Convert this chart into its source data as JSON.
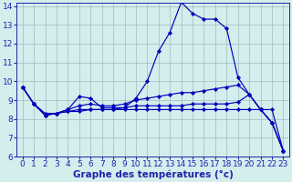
{
  "title": "Graphe des températures (°c)",
  "hours": [
    0,
    1,
    2,
    3,
    4,
    5,
    6,
    7,
    8,
    9,
    10,
    11,
    12,
    13,
    14,
    15,
    16,
    17,
    18,
    19,
    20,
    21,
    22,
    23
  ],
  "temp_main": [
    9.7,
    8.8,
    8.2,
    8.3,
    8.5,
    9.2,
    9.1,
    8.6,
    8.6,
    8.6,
    9.1,
    10.0,
    11.6,
    12.6,
    14.2,
    13.6,
    13.3,
    13.3,
    12.8,
    10.2,
    9.3,
    8.5,
    7.8,
    6.3
  ],
  "temp_line2": [
    9.7,
    8.8,
    8.3,
    8.3,
    8.5,
    8.7,
    8.8,
    8.7,
    8.7,
    8.8,
    9.0,
    9.1,
    9.2,
    9.3,
    9.4,
    9.4,
    9.5,
    9.6,
    9.7,
    9.8,
    9.3,
    8.5,
    7.8,
    6.3
  ],
  "temp_line3": [
    9.7,
    8.8,
    8.2,
    8.3,
    8.4,
    8.5,
    8.5,
    8.5,
    8.5,
    8.6,
    8.7,
    8.7,
    8.7,
    8.7,
    8.7,
    8.8,
    8.8,
    8.8,
    8.8,
    8.9,
    9.3,
    8.5,
    7.8,
    6.3
  ],
  "temp_line4": [
    9.7,
    8.8,
    8.2,
    8.3,
    8.4,
    8.4,
    8.5,
    8.5,
    8.5,
    8.5,
    8.5,
    8.5,
    8.5,
    8.5,
    8.5,
    8.5,
    8.5,
    8.5,
    8.5,
    8.5,
    8.5,
    8.5,
    8.5,
    6.3
  ],
  "line_color": "#0000bb",
  "bg_color": "#d4eded",
  "grid_color": "#9dbdbd",
  "axis_color": "#2222aa",
  "ylim_min": 6,
  "ylim_max": 14,
  "yticks": [
    6,
    7,
    8,
    9,
    10,
    11,
    12,
    13,
    14
  ],
  "tick_fontsize": 6.5,
  "xlabel_fontsize": 7.5
}
